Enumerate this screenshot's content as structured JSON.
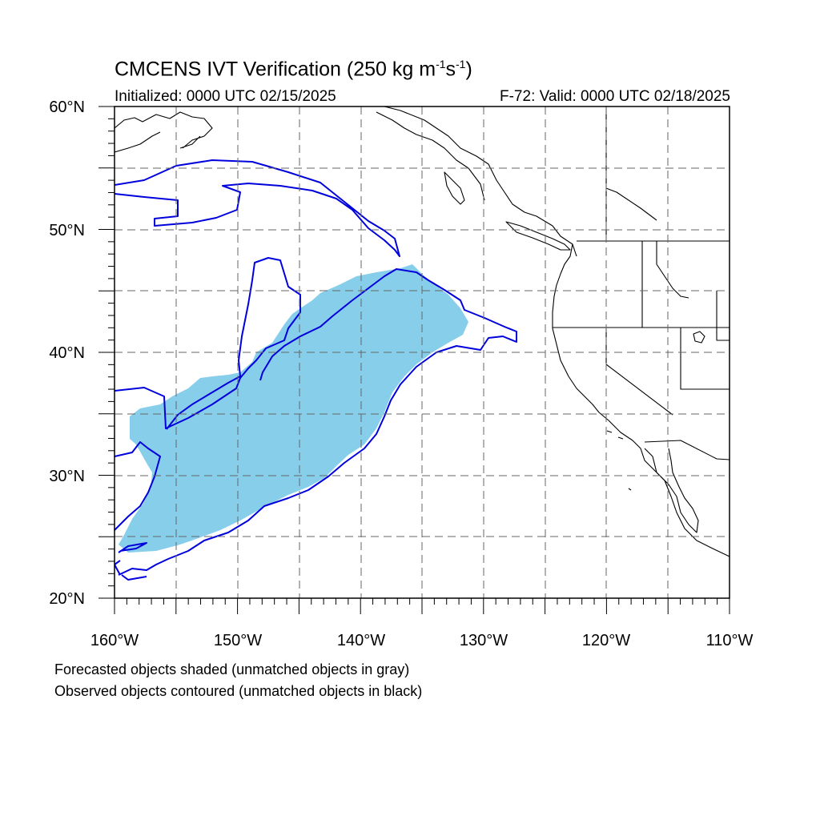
{
  "title": {
    "prefix": "CMCENS IVT Verification (250 kg m",
    "exp1": "-1",
    "mid": "s",
    "exp2": "-1",
    "suffix": ")"
  },
  "subtitle_left": "Initialized: 0000 UTC 02/15/2025",
  "subtitle_right": "F-72: Valid: 0000 UTC 02/18/2025",
  "map": {
    "lon_range": [
      -160,
      -110
    ],
    "lat_range": [
      20,
      60
    ],
    "grid": "dashed",
    "x_tick_labels": [
      "160°W",
      "150°W",
      "140°W",
      "130°W",
      "120°W",
      "110°W"
    ],
    "y_tick_labels": [
      "20°N",
      "30°N",
      "40°N",
      "50°N",
      "60°N"
    ],
    "forecast_color": "#87ceeb",
    "observed_color": "#0000dd",
    "coast_color": "#000000"
  },
  "notes": {
    "line1": "Forecasted objects shaded (unmatched objects in gray)",
    "line2": "Observed objects contoured (unmatched objects in black)"
  }
}
